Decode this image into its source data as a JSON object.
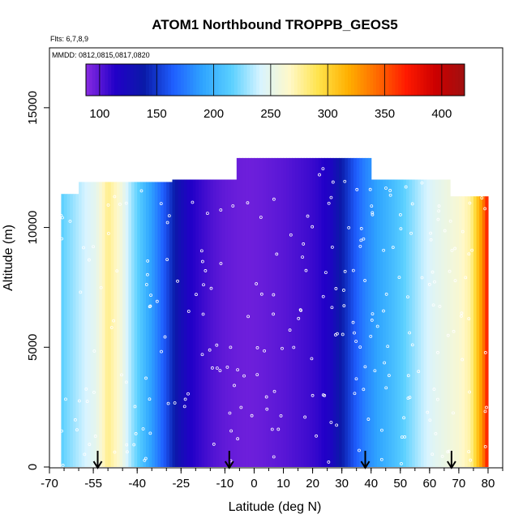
{
  "chart_data": {
    "type": "heatmap",
    "title": "ATOM1 Northbound TROPPB_GEOS5",
    "subtitle_flights": "Flts: 6,7,8,9",
    "subtitle_dates": "MMDD: 0812,0815,0817,0820",
    "xlabel": "Latitude (deg N)",
    "ylabel": "Altitude (m)",
    "xlim": [
      -70,
      85
    ],
    "ylim": [
      0,
      17500
    ],
    "x_tick_labels": [
      "-70",
      "-55",
      "-40",
      "-25",
      "-10",
      "0",
      "10",
      "20",
      "30",
      "40",
      "50",
      "60",
      "70",
      "80"
    ],
    "y_tick_labels": [
      "0",
      "5000",
      "10000",
      "15000"
    ],
    "colorbar": {
      "min": 88,
      "max": 420,
      "tick_labels": [
        "100",
        "150",
        "200",
        "250",
        "300",
        "350",
        "400"
      ],
      "colors": [
        "#8a2be2",
        "#2200c8",
        "#0a1aa8",
        "#1f5fff",
        "#2fa4ff",
        "#5ad0ff",
        "#d8f4ff",
        "#fff8c8",
        "#ffe34a",
        "#ffb000",
        "#ff6a00",
        "#ff1a00",
        "#cc0000",
        "#a01010"
      ]
    },
    "latitude_profile": [
      {
        "lat": -66,
        "value": 215
      },
      {
        "lat": -62,
        "value": 228
      },
      {
        "lat": -58,
        "value": 240
      },
      {
        "lat": -54,
        "value": 250
      },
      {
        "lat": -50,
        "value": 280
      },
      {
        "lat": -46,
        "value": 262
      },
      {
        "lat": -42,
        "value": 230
      },
      {
        "lat": -38,
        "value": 205
      },
      {
        "lat": -34,
        "value": 182
      },
      {
        "lat": -30,
        "value": 158
      },
      {
        "lat": -26,
        "value": 132
      },
      {
        "lat": -22,
        "value": 115
      },
      {
        "lat": -18,
        "value": 108
      },
      {
        "lat": -14,
        "value": 102
      },
      {
        "lat": -10,
        "value": 98
      },
      {
        "lat": -6,
        "value": 96
      },
      {
        "lat": -2,
        "value": 95
      },
      {
        "lat": 2,
        "value": 96
      },
      {
        "lat": 6,
        "value": 98
      },
      {
        "lat": 10,
        "value": 100
      },
      {
        "lat": 14,
        "value": 103
      },
      {
        "lat": 18,
        "value": 106
      },
      {
        "lat": 22,
        "value": 110
      },
      {
        "lat": 26,
        "value": 118
      },
      {
        "lat": 30,
        "value": 140
      },
      {
        "lat": 34,
        "value": 160
      },
      {
        "lat": 38,
        "value": 178
      },
      {
        "lat": 42,
        "value": 190
      },
      {
        "lat": 46,
        "value": 200
      },
      {
        "lat": 50,
        "value": 212
      },
      {
        "lat": 54,
        "value": 225
      },
      {
        "lat": 58,
        "value": 238
      },
      {
        "lat": 62,
        "value": 248
      },
      {
        "lat": 66,
        "value": 255
      },
      {
        "lat": 70,
        "value": 262
      },
      {
        "lat": 74,
        "value": 275
      },
      {
        "lat": 78,
        "value": 330
      },
      {
        "lat": 80,
        "value": 375
      }
    ],
    "column_top_altitude": [
      {
        "lat_from": -66,
        "lat_to": -60,
        "alt": 11400
      },
      {
        "lat_from": -60,
        "lat_to": -28,
        "alt": 11900
      },
      {
        "lat_from": -28,
        "lat_to": -6,
        "alt": 12000
      },
      {
        "lat_from": -6,
        "lat_to": 40,
        "alt": 12900
      },
      {
        "lat_from": 40,
        "lat_to": 54,
        "alt": 12000
      },
      {
        "lat_from": 54,
        "lat_to": 67,
        "alt": 12000
      },
      {
        "lat_from": 67,
        "lat_to": 80,
        "alt": 11300
      }
    ],
    "column_bottom_altitude": 0,
    "flight_markers_lat": [
      -53.5,
      -8.5,
      38,
      67.5
    ]
  }
}
